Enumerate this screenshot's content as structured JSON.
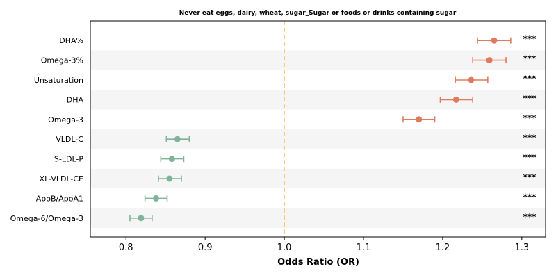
{
  "chart_data": {
    "type": "forest",
    "title": "Never eat eggs, dairy, wheat, sugar_Sugar or foods or drinks containing sugar",
    "xlabel": "Odds Ratio (OR)",
    "xlim": [
      0.755,
      1.33
    ],
    "xticks": [
      0.8,
      0.9,
      1.0,
      1.1,
      1.2,
      1.3
    ],
    "xtick_labels": [
      "0.8",
      "0.9",
      "1.0",
      "1.1",
      "1.2",
      "1.3"
    ],
    "reference_line": 1.0,
    "colors": {
      "positive": "#e07a5f",
      "negative": "#81b29a",
      "reference": "#f2c46d",
      "band": "#f5f5f5"
    },
    "rows": [
      {
        "label": "DHA%",
        "or": 1.265,
        "lo": 1.244,
        "hi": 1.286,
        "sig": "***",
        "dir": "positive"
      },
      {
        "label": "Omega-3%",
        "or": 1.259,
        "lo": 1.238,
        "hi": 1.28,
        "sig": "***",
        "dir": "positive"
      },
      {
        "label": "Unsaturation",
        "or": 1.236,
        "lo": 1.216,
        "hi": 1.257,
        "sig": "***",
        "dir": "positive"
      },
      {
        "label": "DHA",
        "or": 1.217,
        "lo": 1.197,
        "hi": 1.238,
        "sig": "***",
        "dir": "positive"
      },
      {
        "label": "Omega-3",
        "or": 1.17,
        "lo": 1.15,
        "hi": 1.19,
        "sig": "***",
        "dir": "positive"
      },
      {
        "label": "VLDL-C",
        "or": 0.865,
        "lo": 0.851,
        "hi": 0.88,
        "sig": "***",
        "dir": "negative"
      },
      {
        "label": "S-LDL-P",
        "or": 0.858,
        "lo": 0.844,
        "hi": 0.873,
        "sig": "***",
        "dir": "negative"
      },
      {
        "label": "XL-VLDL-CE",
        "or": 0.855,
        "lo": 0.841,
        "hi": 0.87,
        "sig": "***",
        "dir": "negative"
      },
      {
        "label": "ApoB/ApoA1",
        "or": 0.838,
        "lo": 0.824,
        "hi": 0.852,
        "sig": "***",
        "dir": "negative"
      },
      {
        "label": "Omega-6/Omega-3",
        "or": 0.819,
        "lo": 0.805,
        "hi": 0.833,
        "sig": "***",
        "dir": "negative"
      }
    ]
  }
}
